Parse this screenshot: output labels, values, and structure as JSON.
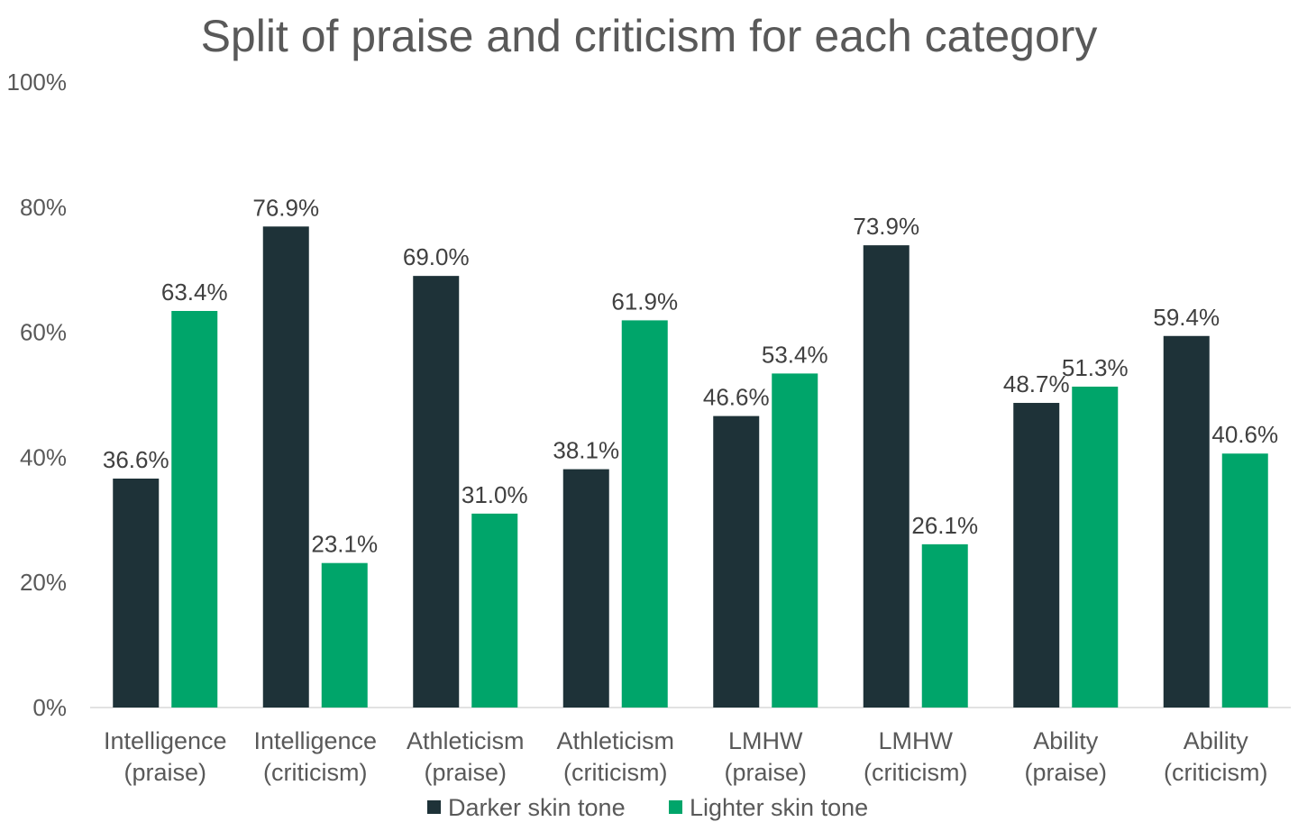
{
  "chart_data": {
    "type": "bar",
    "title": "Split of praise and criticism for each category",
    "categories": [
      [
        "Intelligence",
        "(praise)"
      ],
      [
        "Intelligence",
        "(criticism)"
      ],
      [
        "Athleticism",
        "(praise)"
      ],
      [
        "Athleticism",
        "(criticism)"
      ],
      [
        "LMHW",
        "(praise)"
      ],
      [
        "LMHW",
        "(criticism)"
      ],
      [
        "Ability",
        "(praise)"
      ],
      [
        "Ability",
        "(criticism)"
      ]
    ],
    "series": [
      {
        "name": "Darker skin tone",
        "color": "#1e3238",
        "values": [
          36.6,
          76.9,
          69.0,
          38.1,
          46.6,
          73.9,
          48.7,
          59.4
        ],
        "labels": [
          "36.6%",
          "76.9%",
          "69.0%",
          "38.1%",
          "46.6%",
          "73.9%",
          "48.7%",
          "59.4%"
        ]
      },
      {
        "name": "Lighter skin tone",
        "color": "#00a56a",
        "values": [
          63.4,
          23.1,
          31.0,
          61.9,
          53.4,
          26.1,
          51.3,
          40.6
        ],
        "labels": [
          "63.4%",
          "23.1%",
          "31.0%",
          "61.9%",
          "53.4%",
          "26.1%",
          "51.3%",
          "40.6%"
        ]
      }
    ],
    "ylim": [
      0,
      100
    ],
    "yticks": [
      0,
      20,
      40,
      60,
      80,
      100
    ],
    "ytick_labels": [
      "0%",
      "20%",
      "40%",
      "60%",
      "80%",
      "100%"
    ],
    "xlabel": "",
    "ylabel": "",
    "grid": false,
    "legend_position": "bottom"
  }
}
